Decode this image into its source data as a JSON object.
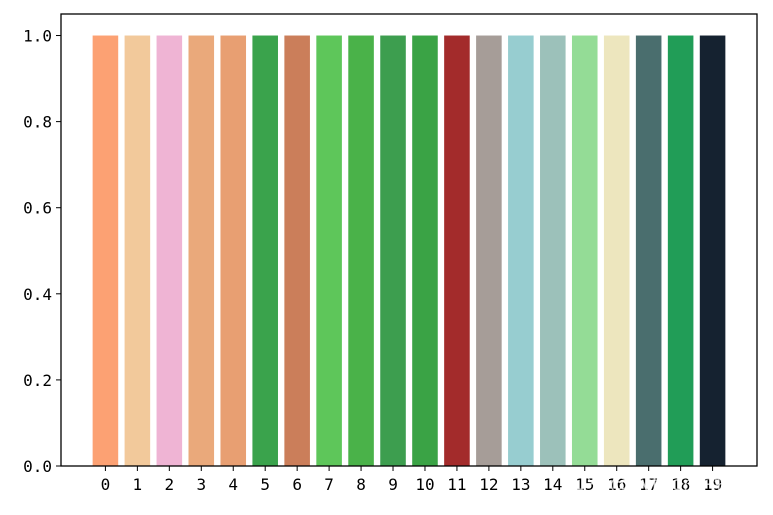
{
  "chart_data": {
    "type": "bar",
    "categories": [
      "0",
      "1",
      "2",
      "3",
      "4",
      "5",
      "6",
      "7",
      "8",
      "9",
      "10",
      "11",
      "12",
      "13",
      "14",
      "15",
      "16",
      "17",
      "18",
      "19"
    ],
    "values": [
      1,
      1,
      1,
      1,
      1,
      1,
      1,
      1,
      1,
      1,
      1,
      1,
      1,
      1,
      1,
      1,
      1,
      1,
      1,
      1
    ],
    "colors": [
      "#FCA173",
      "#F2C99B",
      "#EFB4D4",
      "#EAA97B",
      "#E89F72",
      "#3AA34C",
      "#CB7E5A",
      "#5EC65A",
      "#4AB249",
      "#3D9E4F",
      "#3AA345",
      "#A32B2B",
      "#A69D98",
      "#97CDD0",
      "#9CC1BA",
      "#94DC96",
      "#EDE6BE",
      "#4A6E6E",
      "#219D57",
      "#152230"
    ],
    "yticks": [
      "0.0",
      "0.2",
      "0.4",
      "0.6",
      "0.8",
      "1.0"
    ],
    "ylim": [
      0,
      1.05
    ],
    "title": "",
    "xlabel": "",
    "ylabel": "",
    "grid": false
  },
  "watermark": {
    "text": "知乎 @python生物人",
    "icon": "zhihu-logo"
  }
}
